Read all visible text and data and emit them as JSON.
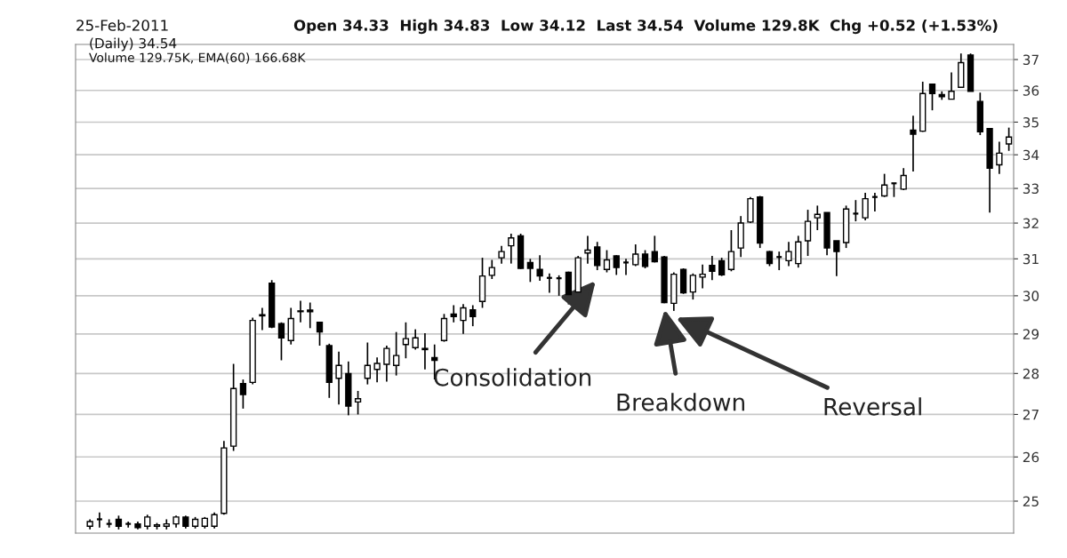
{
  "chart_data": {
    "type": "candlestick",
    "categories": [
      null,
      null,
      null,
      null,
      null,
      null,
      null,
      null,
      null,
      null,
      null,
      null,
      null,
      null,
      null,
      null,
      null,
      null,
      null,
      null,
      null,
      null,
      null,
      null,
      null,
      null,
      null,
      null,
      null,
      null,
      null,
      null,
      null,
      null,
      null,
      null,
      null,
      null,
      null,
      null,
      null,
      null,
      null,
      null,
      null,
      null,
      null,
      null,
      null,
      null,
      null,
      null,
      null,
      null,
      null,
      null,
      null,
      null,
      null,
      null,
      null,
      null,
      null,
      null,
      null,
      null,
      null,
      null,
      null,
      null,
      null,
      null,
      null,
      null,
      null,
      null,
      null,
      null,
      null,
      null,
      null,
      null,
      null,
      null,
      null,
      null,
      null,
      null,
      null,
      null,
      null,
      null,
      null,
      null,
      null,
      null,
      null
    ],
    "ohlc": [
      [
        24.45,
        24.6,
        24.38,
        24.55
      ],
      [
        24.6,
        24.75,
        24.42,
        24.6
      ],
      [
        24.5,
        24.6,
        24.42,
        24.5
      ],
      [
        24.6,
        24.68,
        24.38,
        24.45
      ],
      [
        24.5,
        24.55,
        24.42,
        24.5
      ],
      [
        24.5,
        24.55,
        24.38,
        24.42
      ],
      [
        24.45,
        24.7,
        24.38,
        24.65
      ],
      [
        24.45,
        24.52,
        24.38,
        24.48
      ],
      [
        24.45,
        24.6,
        24.38,
        24.5
      ],
      [
        24.5,
        24.68,
        24.42,
        24.65
      ],
      [
        24.65,
        24.68,
        24.4,
        24.45
      ],
      [
        24.45,
        24.65,
        24.4,
        24.6
      ],
      [
        24.45,
        24.65,
        24.4,
        24.62
      ],
      [
        24.45,
        24.75,
        24.4,
        24.7
      ],
      [
        24.73,
        26.37,
        24.7,
        26.21
      ],
      [
        26.25,
        28.24,
        26.14,
        27.63
      ],
      [
        27.75,
        27.85,
        27.14,
        27.48
      ],
      [
        27.78,
        29.42,
        27.73,
        29.35
      ],
      [
        29.47,
        29.68,
        29.1,
        29.5
      ],
      [
        30.34,
        30.42,
        29.15,
        29.18
      ],
      [
        29.27,
        29.3,
        28.33,
        28.9
      ],
      [
        28.83,
        29.68,
        28.73,
        29.4
      ],
      [
        29.58,
        29.87,
        29.3,
        29.6
      ],
      [
        29.62,
        29.82,
        29.15,
        29.58
      ],
      [
        29.3,
        29.3,
        28.7,
        29.05
      ],
      [
        28.7,
        28.75,
        27.4,
        27.78
      ],
      [
        27.88,
        28.55,
        27.24,
        28.2
      ],
      [
        28.0,
        28.3,
        26.98,
        27.2
      ],
      [
        27.3,
        27.57,
        27.0,
        27.38
      ],
      [
        27.88,
        28.78,
        27.73,
        28.2
      ],
      [
        28.1,
        28.4,
        27.78,
        28.25
      ],
      [
        28.23,
        28.7,
        27.8,
        28.63
      ],
      [
        28.2,
        29.05,
        27.95,
        28.45
      ],
      [
        28.73,
        29.3,
        28.38,
        28.88
      ],
      [
        28.65,
        29.12,
        28.6,
        28.9
      ],
      [
        28.63,
        29.02,
        28.1,
        28.6
      ],
      [
        28.4,
        28.73,
        27.85,
        28.33
      ],
      [
        28.83,
        29.52,
        28.8,
        29.4
      ],
      [
        29.52,
        29.75,
        29.3,
        29.45
      ],
      [
        29.35,
        29.78,
        29.0,
        29.68
      ],
      [
        29.63,
        29.75,
        29.2,
        29.45
      ],
      [
        29.85,
        31.03,
        29.68,
        30.53
      ],
      [
        30.55,
        30.97,
        30.45,
        30.76
      ],
      [
        31.03,
        31.36,
        30.87,
        31.2
      ],
      [
        31.36,
        31.7,
        30.87,
        31.58
      ],
      [
        31.64,
        31.7,
        30.72,
        30.74
      ],
      [
        30.9,
        31.0,
        30.37,
        30.74
      ],
      [
        30.71,
        31.1,
        30.4,
        30.53
      ],
      [
        30.48,
        30.6,
        30.08,
        30.48
      ],
      [
        30.47,
        30.55,
        30.0,
        30.48
      ],
      [
        30.63,
        30.65,
        29.77,
        30.03
      ],
      [
        30.1,
        31.08,
        30.08,
        31.03
      ],
      [
        31.16,
        31.64,
        30.87,
        31.24
      ],
      [
        31.33,
        31.47,
        30.69,
        30.82
      ],
      [
        30.71,
        31.24,
        30.63,
        30.97
      ],
      [
        31.08,
        31.1,
        30.56,
        30.76
      ],
      [
        30.9,
        31.0,
        30.56,
        30.9
      ],
      [
        30.84,
        31.4,
        30.8,
        31.13
      ],
      [
        31.13,
        31.24,
        30.74,
        30.79
      ],
      [
        31.2,
        31.64,
        30.9,
        30.92
      ],
      [
        31.05,
        31.08,
        29.8,
        29.82
      ],
      [
        29.8,
        30.63,
        29.6,
        30.58
      ],
      [
        30.71,
        30.74,
        30.05,
        30.08
      ],
      [
        30.1,
        30.6,
        29.9,
        30.55
      ],
      [
        30.5,
        30.84,
        30.2,
        30.58
      ],
      [
        30.82,
        31.08,
        30.42,
        30.66
      ],
      [
        30.95,
        31.03,
        30.53,
        30.56
      ],
      [
        30.71,
        31.8,
        30.66,
        31.2
      ],
      [
        31.3,
        32.2,
        31.05,
        32.0
      ],
      [
        32.03,
        32.75,
        32.0,
        32.7
      ],
      [
        32.75,
        32.78,
        31.3,
        31.44
      ],
      [
        31.2,
        31.22,
        30.8,
        30.87
      ],
      [
        31.05,
        31.2,
        30.69,
        31.05
      ],
      [
        30.95,
        31.47,
        30.8,
        31.2
      ],
      [
        30.87,
        31.64,
        30.76,
        31.47
      ],
      [
        31.5,
        32.38,
        31.08,
        32.05
      ],
      [
        32.15,
        32.5,
        31.8,
        32.25
      ],
      [
        32.3,
        32.3,
        31.1,
        31.3
      ],
      [
        31.5,
        31.5,
        30.53,
        31.2
      ],
      [
        31.45,
        32.5,
        31.3,
        32.4
      ],
      [
        32.27,
        32.66,
        32.05,
        32.27
      ],
      [
        32.15,
        32.87,
        32.08,
        32.7
      ],
      [
        32.75,
        32.87,
        32.33,
        32.75
      ],
      [
        32.78,
        33.43,
        32.75,
        33.1
      ],
      [
        33.15,
        33.15,
        32.75,
        33.15
      ],
      [
        32.98,
        33.6,
        32.95,
        33.38
      ],
      [
        34.75,
        35.2,
        33.5,
        34.63
      ],
      [
        34.72,
        36.28,
        34.7,
        35.9
      ],
      [
        36.2,
        36.2,
        35.37,
        35.9
      ],
      [
        35.87,
        35.97,
        35.7,
        35.8
      ],
      [
        35.72,
        36.58,
        35.72,
        35.97
      ],
      [
        36.1,
        37.2,
        36.08,
        36.9
      ],
      [
        37.15,
        37.2,
        35.97,
        35.97
      ],
      [
        35.65,
        35.93,
        34.6,
        34.7
      ],
      [
        34.8,
        34.8,
        32.3,
        33.6
      ],
      [
        33.7,
        34.4,
        33.43,
        34.05
      ],
      [
        34.33,
        34.83,
        34.12,
        34.54
      ]
    ],
    "color": "#000000",
    "log": true,
    "ylim": [
      24.3,
      37.5
    ],
    "yticks": [
      25,
      26,
      27,
      28,
      29,
      30,
      31,
      32,
      33,
      34,
      35,
      36,
      37
    ],
    "grid": "y",
    "tick_labels": "y",
    "annotations": [
      "Consolidation",
      "Breakdown",
      "Reversal",
      "25-Feb-2011",
      "Open 34.33  High 34.83  Low 34.12  Last 34.54  Volume 129.8K  Chg +0.52 (+1.53%)",
      "(Daily) 34.54",
      "Volume 129.75K, EMA(60) 166.68K"
    ]
  }
}
